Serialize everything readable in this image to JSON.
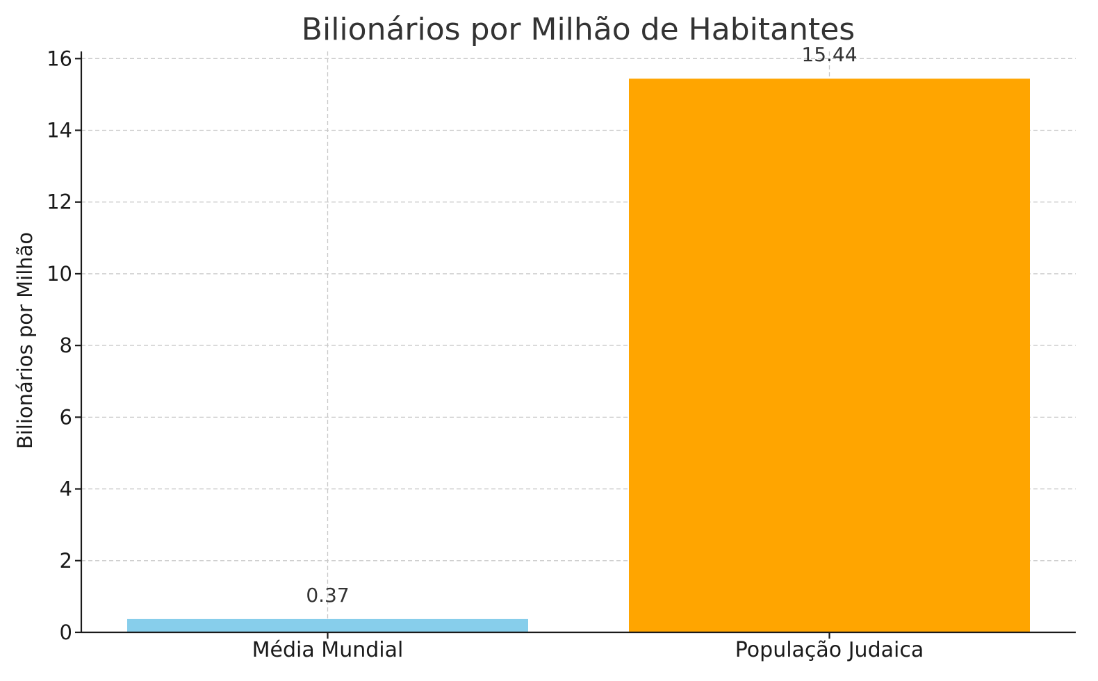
{
  "chart_data": {
    "type": "bar",
    "title": "Bilionários por Milhão de Habitantes",
    "xlabel": "",
    "ylabel": "Bilionários por Milhão",
    "categories": [
      "Média Mundial",
      "População Judaica"
    ],
    "values": [
      0.37,
      15.44
    ],
    "value_labels": [
      "0.37",
      "15.44"
    ],
    "colors": [
      "#87CEEB",
      "#FFA500"
    ],
    "ylim": [
      0,
      16.2
    ],
    "yticks": [
      0,
      2,
      4,
      6,
      8,
      10,
      12,
      14,
      16
    ],
    "grid": true,
    "legend": "none"
  }
}
